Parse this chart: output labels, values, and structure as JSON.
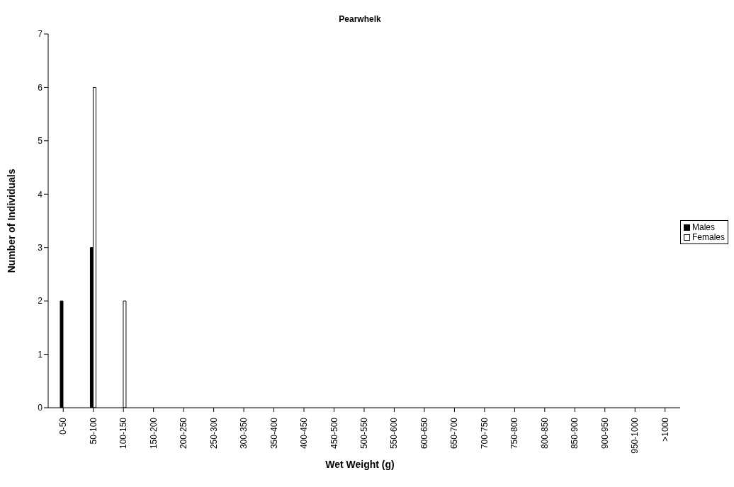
{
  "chart_data": {
    "type": "bar",
    "title": "Pearwhelk",
    "xlabel": "Wet Weight (g)",
    "ylabel": "Number of Individuals",
    "categories": [
      "0-50",
      "50-100",
      "100-150",
      "150-200",
      "200-250",
      "250-300",
      "300-350",
      "350-400",
      "400-450",
      "450-500",
      "500-550",
      "550-600",
      "600-650",
      "650-700",
      "700-750",
      "750-800",
      "800-850",
      "850-900",
      "900-950",
      "950-1000",
      ">1000"
    ],
    "series": [
      {
        "name": "Males",
        "color": "#000000",
        "values": [
          2,
          3,
          0,
          0,
          0,
          0,
          0,
          0,
          0,
          0,
          0,
          0,
          0,
          0,
          0,
          0,
          0,
          0,
          0,
          0,
          0
        ]
      },
      {
        "name": "Females",
        "color": "#ffffff",
        "values": [
          0,
          6,
          2,
          0,
          0,
          0,
          0,
          0,
          0,
          0,
          0,
          0,
          0,
          0,
          0,
          0,
          0,
          0,
          0,
          0,
          0
        ]
      }
    ],
    "ylim": [
      0,
      7
    ],
    "yticks": [
      0,
      1,
      2,
      3,
      4,
      5,
      6,
      7
    ],
    "grid": false,
    "legend": "right"
  }
}
